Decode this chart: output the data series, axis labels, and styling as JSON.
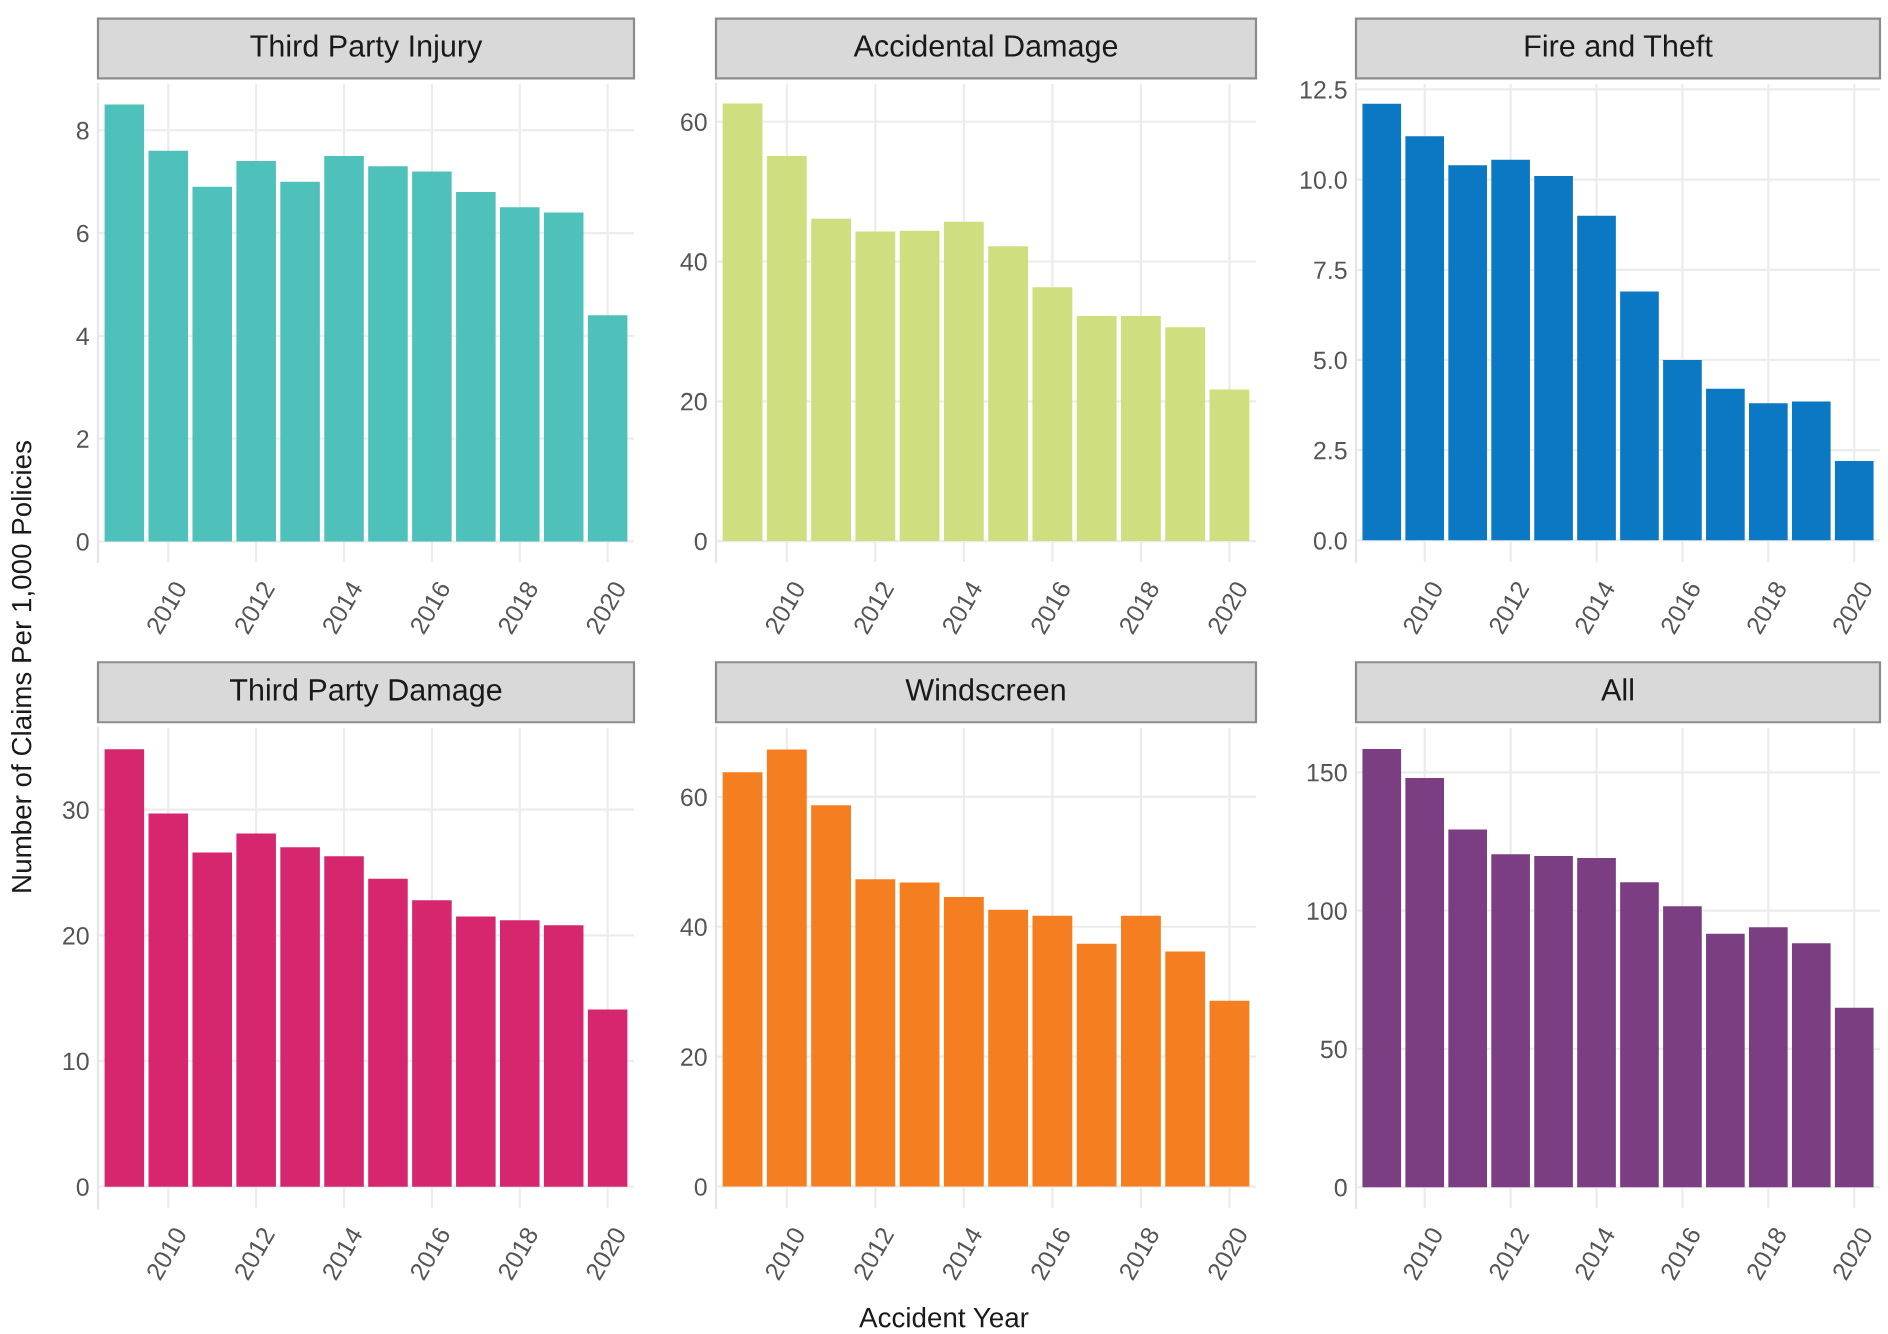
{
  "chart_data": [
    {
      "type": "bar",
      "title": "Third Party Injury",
      "ylabel": "Number of Claims Per 1,000 Policies",
      "x": [
        2009,
        2010,
        2011,
        2012,
        2013,
        2014,
        2015,
        2016,
        2017,
        2018,
        2019,
        2020
      ],
      "values": [
        8.5,
        7.6,
        6.9,
        7.4,
        7.0,
        7.5,
        7.3,
        7.2,
        6.8,
        6.5,
        6.4,
        4.4
      ],
      "color": "#4fc1bb",
      "xlim": [
        2008.4,
        2020.6
      ],
      "xticks": [
        2010,
        2012,
        2014,
        2016,
        2018,
        2020
      ],
      "ylim": [
        -0.4,
        8.9
      ],
      "yticks": [
        0,
        2,
        4,
        6,
        8
      ],
      "grid": true
    },
    {
      "type": "bar",
      "title": "Accidental Damage",
      "x": [
        2009,
        2010,
        2011,
        2012,
        2013,
        2014,
        2015,
        2016,
        2017,
        2018,
        2019,
        2020
      ],
      "values": [
        62.6,
        55.1,
        46.1,
        44.3,
        44.4,
        45.7,
        42.2,
        36.3,
        32.2,
        32.2,
        30.6,
        21.7
      ],
      "color": "#cfdf80",
      "xlim": [
        2008.4,
        2020.6
      ],
      "xticks": [
        2010,
        2012,
        2014,
        2016,
        2018,
        2020
      ],
      "ylim": [
        -3,
        65.4
      ],
      "yticks": [
        0,
        20,
        40,
        60
      ],
      "grid": true
    },
    {
      "type": "bar",
      "title": "Fire and Theft",
      "x": [
        2009,
        2010,
        2011,
        2012,
        2013,
        2014,
        2015,
        2016,
        2017,
        2018,
        2019,
        2020
      ],
      "values": [
        12.1,
        11.2,
        10.4,
        10.55,
        10.1,
        9.0,
        6.9,
        5.0,
        4.2,
        3.8,
        3.85,
        2.2
      ],
      "color": "#0a78c2",
      "xlim": [
        2008.4,
        2020.6
      ],
      "xticks": [
        2010,
        2012,
        2014,
        2016,
        2018,
        2020
      ],
      "ylim": [
        -0.6,
        12.65
      ],
      "yticks": [
        {
          "value": 0,
          "label": "0.0"
        },
        {
          "value": 2.5,
          "label": "2.5"
        },
        {
          "value": 5,
          "label": "5.0"
        },
        {
          "value": 7.5,
          "label": "7.5"
        },
        {
          "value": 10,
          "label": "10.0"
        },
        {
          "value": 12.5,
          "label": "12.5"
        }
      ],
      "grid": true
    },
    {
      "type": "bar",
      "title": "Third Party Damage",
      "x": [
        2009,
        2010,
        2011,
        2012,
        2013,
        2014,
        2015,
        2016,
        2017,
        2018,
        2019,
        2020
      ],
      "values": [
        34.8,
        29.7,
        26.6,
        28.1,
        27.0,
        26.3,
        24.5,
        22.8,
        21.5,
        21.2,
        20.8,
        14.1
      ],
      "color": "#d6266e",
      "xlim": [
        2008.4,
        2020.6
      ],
      "xticks": [
        2010,
        2012,
        2014,
        2016,
        2018,
        2020
      ],
      "ylim": [
        -1.7,
        36.5
      ],
      "yticks": [
        0,
        10,
        20,
        30
      ],
      "grid": true
    },
    {
      "type": "bar",
      "title": "Windscreen",
      "xlabel": "Accident Year",
      "x": [
        2009,
        2010,
        2011,
        2012,
        2013,
        2014,
        2015,
        2016,
        2017,
        2018,
        2019,
        2020
      ],
      "values": [
        63.8,
        67.3,
        58.7,
        47.3,
        46.8,
        44.6,
        42.6,
        41.7,
        37.4,
        41.7,
        36.2,
        28.6
      ],
      "color": "#f57f20",
      "xlim": [
        2008.4,
        2020.6
      ],
      "xticks": [
        2010,
        2012,
        2014,
        2016,
        2018,
        2020
      ],
      "ylim": [
        -3.3,
        70.6
      ],
      "yticks": [
        0,
        20,
        40,
        60
      ],
      "grid": true
    },
    {
      "type": "bar",
      "title": "All",
      "x": [
        2009,
        2010,
        2011,
        2012,
        2013,
        2014,
        2015,
        2016,
        2017,
        2018,
        2019,
        2020
      ],
      "values": [
        158.4,
        147.9,
        129.3,
        120.4,
        119.7,
        119.0,
        110.2,
        101.6,
        91.6,
        94.0,
        88.2,
        64.9
      ],
      "color": "#7b3e83",
      "xlim": [
        2008.4,
        2020.6
      ],
      "xticks": [
        2010,
        2012,
        2014,
        2016,
        2018,
        2020
      ],
      "ylim": [
        -7.5,
        166
      ],
      "yticks": [
        0,
        50,
        100,
        150
      ],
      "grid": true
    }
  ]
}
